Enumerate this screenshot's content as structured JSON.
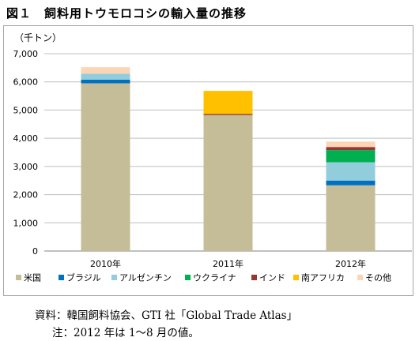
{
  "figure_title": "図１　飼料用トウモロコシの輸入量の推移",
  "source_note": "資料：韓国飼料協会、GTI 社「Global Trade Atlas」",
  "footnote": "注：2012 年は 1～8 月の値。",
  "chart_data": {
    "type": "bar",
    "stacked": true,
    "title": "",
    "ylabel": "（千トン）",
    "xlabel": "",
    "ylim": [
      0,
      7000
    ],
    "yticks": [
      "0",
      "1,000",
      "2,000",
      "3,000",
      "4,000",
      "5,000",
      "6,000",
      "7,000"
    ],
    "ytick_values": [
      0,
      1000,
      2000,
      3000,
      4000,
      5000,
      6000,
      7000
    ],
    "grid": true,
    "legend_position": "bottom",
    "categories": [
      "2010年",
      "2011年",
      "2012年"
    ],
    "series": [
      {
        "name": "米国",
        "color": "#c4bd97",
        "values": [
          5950,
          4820,
          2330
        ]
      },
      {
        "name": "ブラジル",
        "color": "#0070c0",
        "values": [
          130,
          0,
          170
        ]
      },
      {
        "name": "アルゼンチン",
        "color": "#92cddc",
        "values": [
          210,
          0,
          650
        ]
      },
      {
        "name": "ウクライナ",
        "color": "#00b050",
        "values": [
          0,
          0,
          430
        ]
      },
      {
        "name": "インド",
        "color": "#953735",
        "values": [
          0,
          40,
          110
        ]
      },
      {
        "name": "南アフリカ",
        "color": "#ffc000",
        "values": [
          0,
          820,
          0
        ]
      },
      {
        "name": "その他",
        "color": "#fcd5b4",
        "values": [
          230,
          0,
          190
        ]
      }
    ]
  }
}
